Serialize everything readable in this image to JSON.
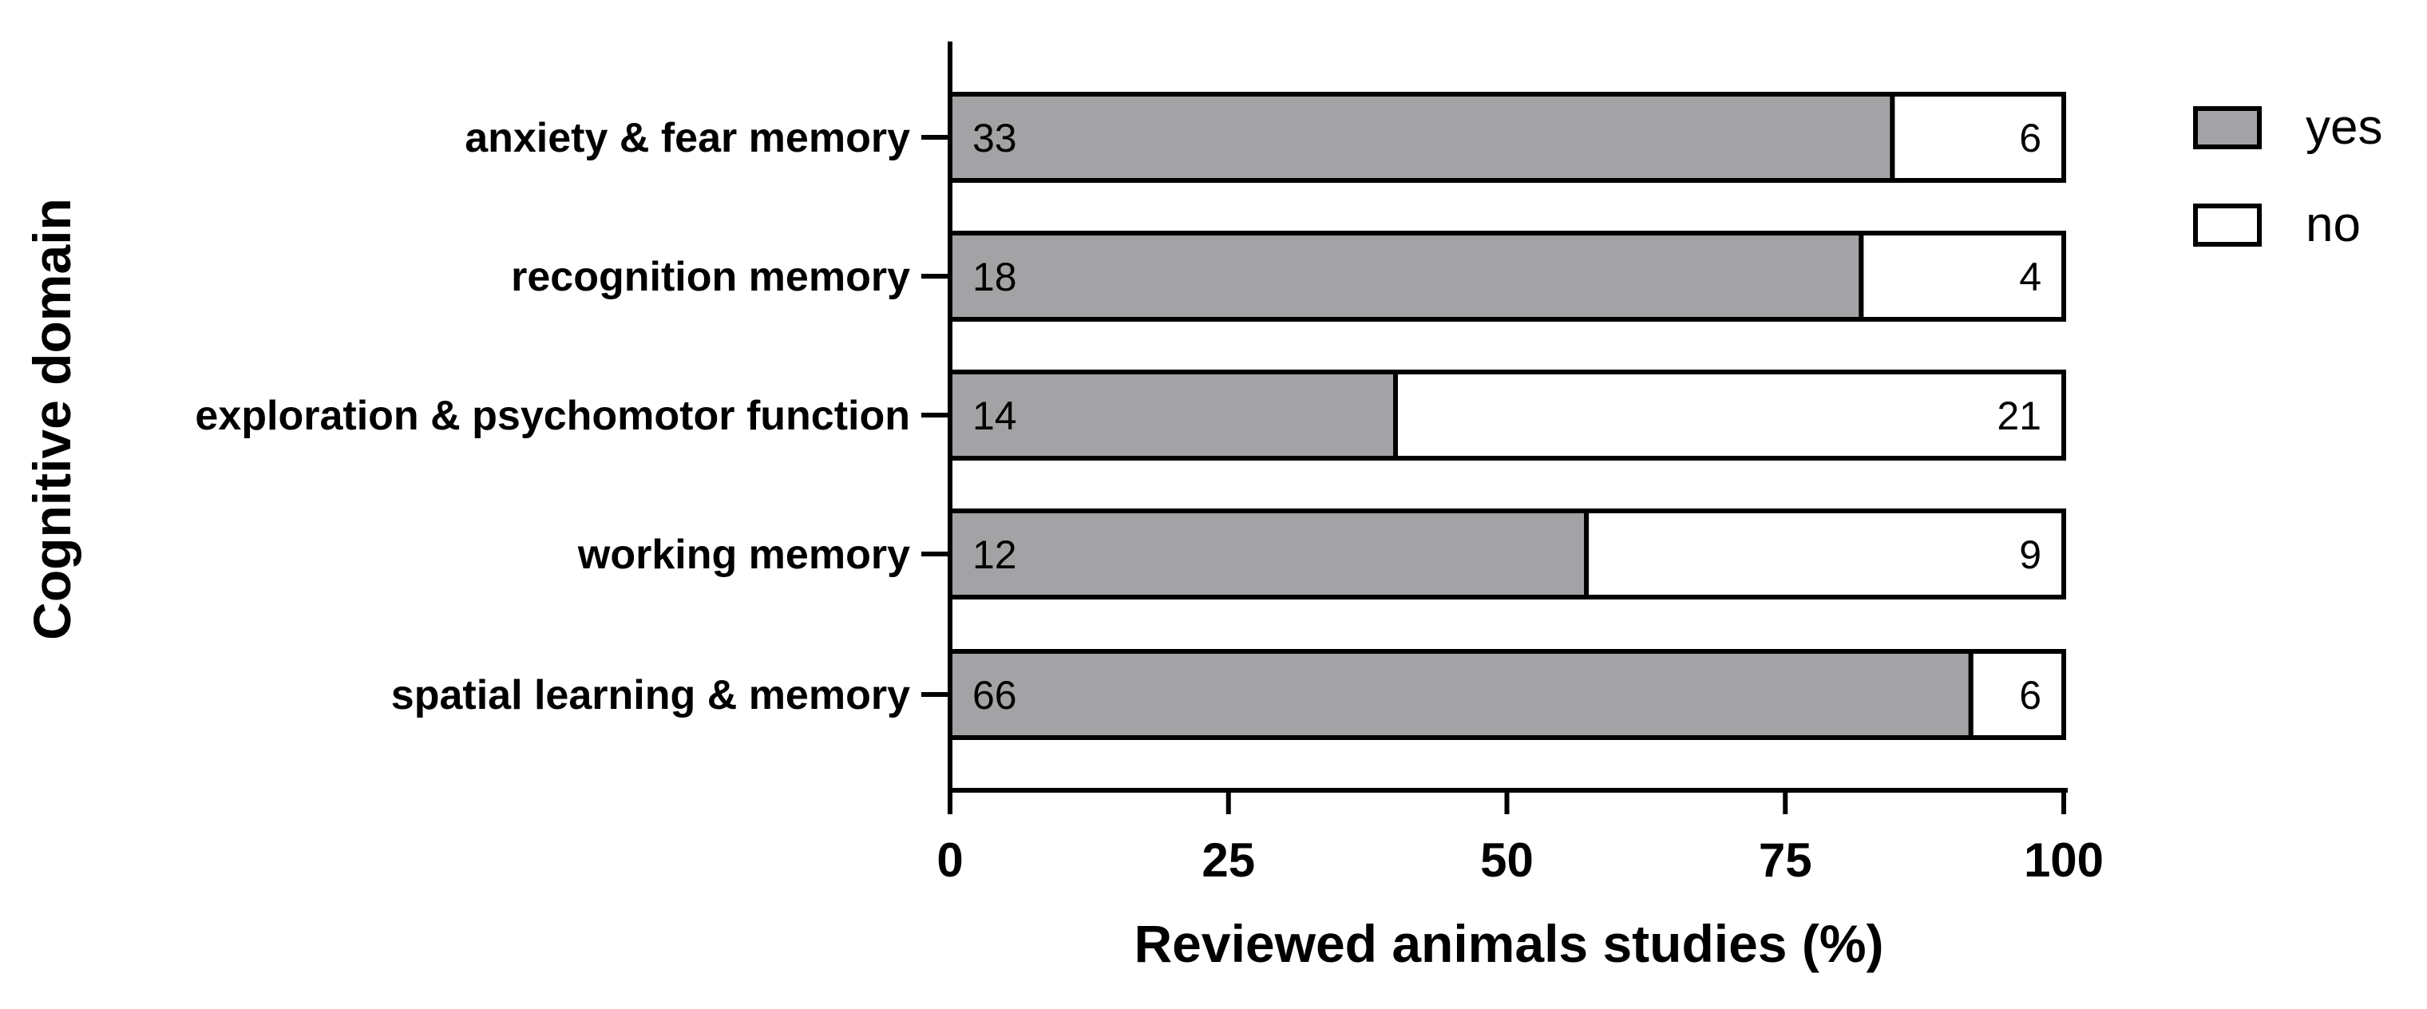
{
  "chart_data": {
    "type": "bar",
    "orientation": "horizontal",
    "stacked": true,
    "normalized_percent": true,
    "xlabel": "Reviewed animals studies (%)",
    "ylabel": "Cognitive domain",
    "xlim": [
      0,
      100
    ],
    "xticks": [
      "0",
      "25",
      "50",
      "75",
      "100"
    ],
    "categories": [
      "anxiety & fear memory",
      "recognition memory",
      "exploration & psychomotor function",
      "working memory",
      "spatial learning & memory"
    ],
    "series": [
      {
        "name": "yes",
        "values": [
          33,
          18,
          14,
          12,
          66
        ],
        "color": "#a3a3a6"
      },
      {
        "name": "no",
        "values": [
          6,
          4,
          21,
          9,
          6
        ],
        "color": "#ffffff"
      }
    ],
    "legend_position": "top-right",
    "grid": false
  }
}
